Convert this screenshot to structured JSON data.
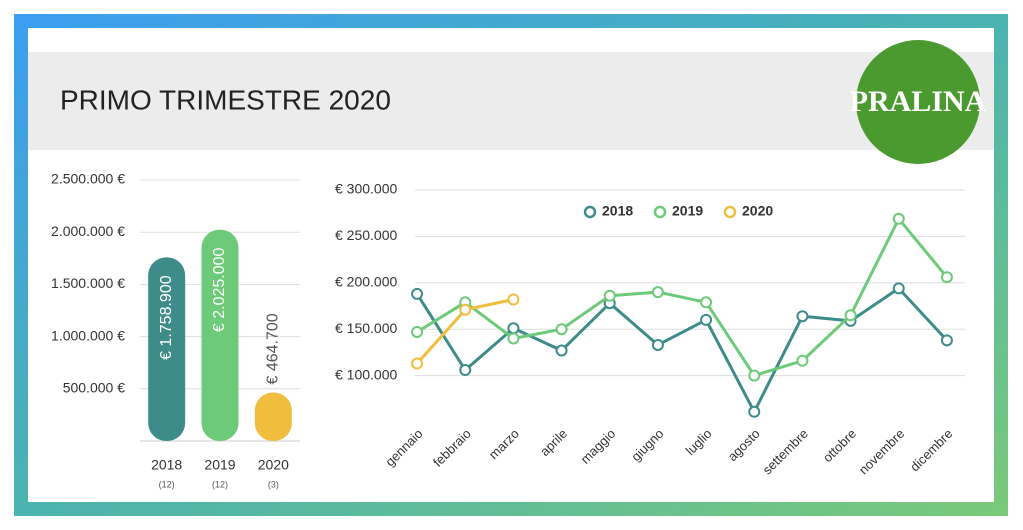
{
  "header": {
    "title": "PRIMO TRIMESTRE 2020",
    "logo": "PRALINA"
  },
  "chart_data": [
    {
      "type": "bar",
      "categories": [
        "2018",
        "2019",
        "2020"
      ],
      "category_notes": [
        "(12)",
        "(12)",
        "(3)"
      ],
      "values": [
        1758900,
        2025000,
        464700
      ],
      "value_labels": [
        "€ 1.758.900",
        "€ 2.025.000",
        "€ 464.700"
      ],
      "colors": [
        "#3d8c8a",
        "#6cca78",
        "#f0bd3c"
      ],
      "ylim": [
        0,
        2500000
      ],
      "yticks": [
        {
          "value": 500000,
          "label": "500.000 €"
        },
        {
          "value": 1000000,
          "label": "1.000.000 €"
        },
        {
          "value": 1500000,
          "label": "1.500.000 €"
        },
        {
          "value": 2000000,
          "label": "2.000.000 €"
        },
        {
          "value": 2500000,
          "label": "2.500.000 €"
        }
      ],
      "grid": true
    },
    {
      "type": "line",
      "categories": [
        "gennaio",
        "febbraio",
        "marzo",
        "aprile",
        "maggio",
        "giugno",
        "luglio",
        "agosto",
        "settembre",
        "ottobre",
        "novembre",
        "dicembre"
      ],
      "series": [
        {
          "name": "2018",
          "color": "#3d8c8a",
          "values": [
            188000,
            106000,
            151000,
            127000,
            178000,
            133000,
            160000,
            61000,
            164000,
            159000,
            194000,
            138000
          ]
        },
        {
          "name": "2019",
          "color": "#6cca78",
          "values": [
            147000,
            179000,
            140000,
            150000,
            186000,
            190000,
            179000,
            100000,
            116000,
            165000,
            269000,
            206000
          ]
        },
        {
          "name": "2020",
          "color": "#f0bd3c",
          "values": [
            113000,
            171000,
            182000,
            null,
            null,
            null,
            null,
            null,
            null,
            null,
            null,
            null
          ]
        }
      ],
      "ylim": [
        50000,
        300000
      ],
      "yticks": [
        {
          "value": 100000,
          "label": "€ 100.000"
        },
        {
          "value": 150000,
          "label": "€ 150.000"
        },
        {
          "value": 200000,
          "label": "€ 200.000"
        },
        {
          "value": 250000,
          "label": "€ 250.000"
        },
        {
          "value": 300000,
          "label": "€ 300.000"
        }
      ],
      "grid": true,
      "legend": "top"
    }
  ]
}
